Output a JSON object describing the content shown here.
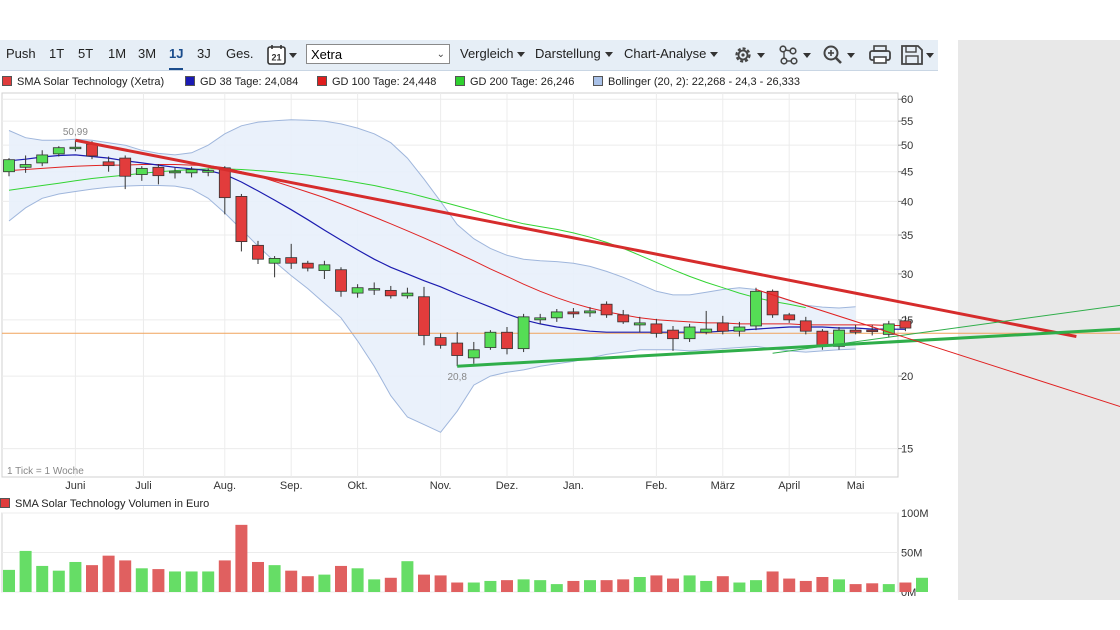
{
  "toolbar": {
    "ranges": [
      "Push",
      "1T",
      "5T",
      "1M",
      "3M",
      "1J",
      "3J",
      "Ges."
    ],
    "active_range": "1J",
    "calendar_day": "21",
    "exchange": "Xetra",
    "menus": [
      "Vergleich",
      "Darstellung",
      "Chart-Analyse"
    ],
    "icons": [
      "gear-icon",
      "network-icon",
      "zoom-icon",
      "printer-icon",
      "save-icon"
    ]
  },
  "legend": [
    {
      "label": "SMA Solar Technology (Xetra)",
      "color": "#e03c3c"
    },
    {
      "label": "GD 38 Tage: 24,084",
      "color": "#1a1ab4"
    },
    {
      "label": "GD 100 Tage: 24,448",
      "color": "#e01e1e"
    },
    {
      "label": "GD 200 Tage: 26,246",
      "color": "#2fd12f"
    },
    {
      "label": "Bollinger (20, 2): 22,268 - 24,3 - 26,333",
      "color": "#a9c1e8"
    }
  ],
  "chart_data": {
    "type": "candlestick",
    "scale": "log",
    "y_ticks": [
      60,
      55,
      50,
      45,
      40,
      35,
      30,
      25,
      20,
      15
    ],
    "x_labels": [
      "Juni",
      "Juli",
      "Aug.",
      "Sep.",
      "Okt.",
      "Nov.",
      "Dez.",
      "Jan.",
      "Feb.",
      "März",
      "April",
      "Mai"
    ],
    "tick_note": "1 Tick = 1 Woche",
    "annotations": [
      {
        "text": "50,99",
        "value": 50.99
      },
      {
        "text": "20,8",
        "value": 20.8
      }
    ],
    "horizontal_line": 23.7,
    "candles": [
      {
        "o": 45.0,
        "h": 47.5,
        "l": 44.2,
        "c": 47.2
      },
      {
        "o": 45.8,
        "h": 48.0,
        "l": 44.8,
        "c": 46.3
      },
      {
        "o": 46.6,
        "h": 49.0,
        "l": 46.0,
        "c": 48.1
      },
      {
        "o": 48.3,
        "h": 49.8,
        "l": 47.8,
        "c": 49.5
      },
      {
        "o": 49.3,
        "h": 50.99,
        "l": 48.8,
        "c": 49.6
      },
      {
        "o": 50.2,
        "h": 50.8,
        "l": 47.3,
        "c": 47.9
      },
      {
        "o": 46.8,
        "h": 47.8,
        "l": 45.0,
        "c": 46.1
      },
      {
        "o": 47.5,
        "h": 48.0,
        "l": 42.0,
        "c": 44.2
      },
      {
        "o": 44.5,
        "h": 46.0,
        "l": 43.4,
        "c": 45.6
      },
      {
        "o": 45.8,
        "h": 46.4,
        "l": 42.8,
        "c": 44.3
      },
      {
        "o": 44.8,
        "h": 45.8,
        "l": 43.8,
        "c": 45.1
      },
      {
        "o": 44.8,
        "h": 45.9,
        "l": 44.0,
        "c": 45.4
      },
      {
        "o": 44.9,
        "h": 45.6,
        "l": 44.2,
        "c": 45.2
      },
      {
        "o": 45.7,
        "h": 46.0,
        "l": 38.0,
        "c": 40.6
      },
      {
        "o": 40.8,
        "h": 41.2,
        "l": 32.8,
        "c": 34.1
      },
      {
        "o": 33.6,
        "h": 34.2,
        "l": 31.2,
        "c": 31.8
      },
      {
        "o": 31.3,
        "h": 32.2,
        "l": 29.6,
        "c": 31.9
      },
      {
        "o": 32.0,
        "h": 33.8,
        "l": 30.6,
        "c": 31.3
      },
      {
        "o": 31.3,
        "h": 31.6,
        "l": 30.3,
        "c": 30.7
      },
      {
        "o": 30.4,
        "h": 31.6,
        "l": 29.4,
        "c": 31.1
      },
      {
        "o": 30.5,
        "h": 30.8,
        "l": 27.4,
        "c": 28.0
      },
      {
        "o": 27.8,
        "h": 28.8,
        "l": 27.3,
        "c": 28.4
      },
      {
        "o": 28.2,
        "h": 29.0,
        "l": 27.6,
        "c": 28.3
      },
      {
        "o": 28.1,
        "h": 28.6,
        "l": 27.2,
        "c": 27.5
      },
      {
        "o": 27.5,
        "h": 28.4,
        "l": 27.2,
        "c": 27.8
      },
      {
        "o": 27.4,
        "h": 28.5,
        "l": 22.6,
        "c": 23.5
      },
      {
        "o": 23.3,
        "h": 23.7,
        "l": 22.3,
        "c": 22.6
      },
      {
        "o": 22.8,
        "h": 23.8,
        "l": 20.8,
        "c": 21.7
      },
      {
        "o": 21.5,
        "h": 22.9,
        "l": 21.0,
        "c": 22.2
      },
      {
        "o": 22.4,
        "h": 24.0,
        "l": 22.2,
        "c": 23.8
      },
      {
        "o": 23.8,
        "h": 24.3,
        "l": 21.8,
        "c": 22.3
      },
      {
        "o": 22.3,
        "h": 25.6,
        "l": 22.0,
        "c": 25.3
      },
      {
        "o": 25.0,
        "h": 25.6,
        "l": 24.6,
        "c": 25.2
      },
      {
        "o": 25.2,
        "h": 26.1,
        "l": 24.8,
        "c": 25.8
      },
      {
        "o": 25.8,
        "h": 26.2,
        "l": 25.2,
        "c": 25.6
      },
      {
        "o": 25.7,
        "h": 26.3,
        "l": 25.3,
        "c": 25.9
      },
      {
        "o": 26.6,
        "h": 26.9,
        "l": 25.2,
        "c": 25.5
      },
      {
        "o": 25.5,
        "h": 26.0,
        "l": 24.6,
        "c": 24.8
      },
      {
        "o": 24.5,
        "h": 25.3,
        "l": 23.8,
        "c": 24.7
      },
      {
        "o": 24.6,
        "h": 25.1,
        "l": 23.3,
        "c": 23.7
      },
      {
        "o": 24.0,
        "h": 24.4,
        "l": 22.1,
        "c": 23.2
      },
      {
        "o": 23.2,
        "h": 24.6,
        "l": 22.9,
        "c": 24.3
      },
      {
        "o": 23.8,
        "h": 25.9,
        "l": 23.6,
        "c": 24.1
      },
      {
        "o": 24.7,
        "h": 25.4,
        "l": 23.6,
        "c": 23.9
      },
      {
        "o": 23.9,
        "h": 24.8,
        "l": 23.4,
        "c": 24.3
      },
      {
        "o": 24.4,
        "h": 28.4,
        "l": 24.0,
        "c": 28.0
      },
      {
        "o": 28.0,
        "h": 28.2,
        "l": 25.2,
        "c": 25.5
      },
      {
        "o": 25.5,
        "h": 25.7,
        "l": 24.7,
        "c": 25.0
      },
      {
        "o": 24.9,
        "h": 25.3,
        "l": 23.6,
        "c": 23.9
      },
      {
        "o": 23.9,
        "h": 24.1,
        "l": 22.2,
        "c": 22.6
      },
      {
        "o": 22.5,
        "h": 24.3,
        "l": 22.2,
        "c": 24.0
      },
      {
        "o": 24.0,
        "h": 24.5,
        "l": 23.6,
        "c": 23.8
      },
      {
        "o": 24.0,
        "h": 24.5,
        "l": 23.5,
        "c": 23.9
      },
      {
        "o": 23.6,
        "h": 24.9,
        "l": 23.3,
        "c": 24.6
      },
      {
        "o": 24.9,
        "h": 25.4,
        "l": 23.9,
        "c": 24.2
      }
    ],
    "sma38": [
      47.0,
      47.3,
      47.7,
      48.0,
      48.1,
      47.8,
      47.5,
      47.0,
      46.6,
      46.2,
      45.8,
      45.5,
      45.2,
      44.5,
      43.2,
      41.7,
      40.2,
      38.7,
      37.2,
      35.7,
      34.3,
      33.0,
      31.8,
      30.8,
      30.0,
      29.2,
      28.5,
      27.7,
      27.0,
      26.3,
      25.6,
      25.0,
      24.6,
      24.3,
      24.1,
      23.9,
      23.8,
      23.8,
      23.8,
      23.8,
      23.8,
      23.8,
      23.8,
      23.9,
      24.0,
      24.1,
      24.2,
      24.3,
      24.3,
      24.3,
      24.2,
      24.2,
      24.1,
      24.1,
      24.08
    ],
    "sma100": [
      45.2,
      45.4,
      45.6,
      45.8,
      46.0,
      46.1,
      46.2,
      46.2,
      46.3,
      46.3,
      46.3,
      46.2,
      46.1,
      45.7,
      45.0,
      44.2,
      43.3,
      42.4,
      41.5,
      40.6,
      39.6,
      38.6,
      37.6,
      36.6,
      35.6,
      34.6,
      33.6,
      32.6,
      31.6,
      30.6,
      29.7,
      28.8,
      28.0,
      27.3,
      26.7,
      26.2,
      25.8,
      25.5,
      25.2,
      25.0,
      24.9,
      24.8,
      24.7,
      24.7,
      24.6,
      24.6,
      24.6,
      24.6,
      24.5,
      24.5,
      24.5,
      24.5,
      24.5,
      24.45,
      24.448
    ],
    "sma200": [
      41.8,
      42.2,
      42.6,
      43.0,
      43.4,
      43.8,
      44.1,
      44.4,
      44.7,
      45.0,
      45.2,
      45.4,
      45.5,
      45.5,
      45.4,
      45.2,
      45.0,
      44.7,
      44.4,
      44.0,
      43.6,
      43.1,
      42.6,
      42.0,
      41.4,
      40.7,
      40.0,
      39.3,
      38.6,
      37.9,
      37.2,
      36.6,
      36.2,
      35.8,
      35.3,
      34.7,
      34.0,
      33.2,
      32.3,
      31.4,
      30.5,
      29.7,
      29.0,
      28.4,
      27.8,
      27.3,
      26.9,
      26.6,
      26.246
    ],
    "bollinger_upper": [
      53.0,
      51.5,
      51.0,
      51.0,
      51.2,
      51.0,
      50.5,
      50.0,
      49.0,
      48.4,
      48.1,
      48.5,
      50.0,
      52.3,
      54.0,
      54.8,
      55.1,
      55.3,
      55.2,
      55.0,
      54.4,
      53.5,
      52.3,
      50.5,
      47.5,
      43.7,
      40.0,
      36.5,
      34.5,
      33.2,
      32.3,
      31.8,
      31.6,
      31.5,
      31.3,
      30.9,
      30.3,
      29.6,
      28.8,
      28.0,
      27.6,
      27.6,
      27.9,
      28.2,
      28.4,
      28.2,
      27.6,
      27.0,
      26.5,
      26.3,
      26.2,
      26.333
    ],
    "bollinger_lower": [
      37.0,
      39.0,
      40.5,
      41.2,
      41.6,
      42.0,
      42.3,
      42.5,
      42.6,
      42.6,
      42.5,
      42.0,
      40.5,
      38.2,
      35.8,
      33.5,
      31.5,
      29.8,
      28.3,
      26.7,
      25.2,
      23.0,
      20.8,
      18.5,
      17.0,
      16.5,
      16.0,
      17.4,
      19.3,
      20.0,
      20.3,
      20.5,
      20.8,
      21.0,
      21.2,
      21.5,
      21.8,
      22.0,
      22.2,
      22.2,
      22.2,
      22.1,
      22.2,
      22.3,
      22.4,
      22.5,
      22.3,
      22.1,
      22.0,
      22.1,
      22.2,
      22.268
    ],
    "trendlines": [
      {
        "color": "#d62c2c",
        "from": {
          "i": 4,
          "v": 50.99
        },
        "to": {
          "i": 64.3,
          "v": 23.4
        },
        "width": 3
      },
      {
        "color": "#2fae4a",
        "from": {
          "i": 27,
          "v": 20.8
        },
        "to": {
          "i": 67,
          "v": 24.1
        },
        "width": 3
      },
      {
        "color": "#2fae4a",
        "from": {
          "i": 46,
          "v": 21.9
        },
        "to": {
          "i": 67,
          "v": 26.5
        },
        "width": 1
      },
      {
        "color": "#e02020",
        "from": {
          "i": 45,
          "v": 28.2
        },
        "to": {
          "i": 67,
          "v": 17.7
        },
        "width": 1
      }
    ]
  },
  "volume": {
    "title": "SMA Solar Technology Volumen in Euro",
    "y_ticks": [
      {
        "label": "100M",
        "value": 100
      },
      {
        "label": "50M",
        "value": 50
      },
      {
        "label": "0M",
        "value": 0
      }
    ],
    "values": [
      28,
      52,
      33,
      27,
      38,
      34,
      46,
      40,
      30,
      29,
      26,
      26,
      26,
      40,
      85,
      38,
      34,
      27,
      20,
      22,
      33,
      30,
      16,
      18,
      39,
      22,
      21,
      12,
      12,
      14,
      15,
      16,
      15,
      10,
      14,
      15,
      15,
      16,
      19,
      21,
      17,
      21,
      14,
      20,
      12,
      15,
      26,
      17,
      14,
      19,
      16,
      10,
      11,
      10,
      12,
      18
    ]
  }
}
